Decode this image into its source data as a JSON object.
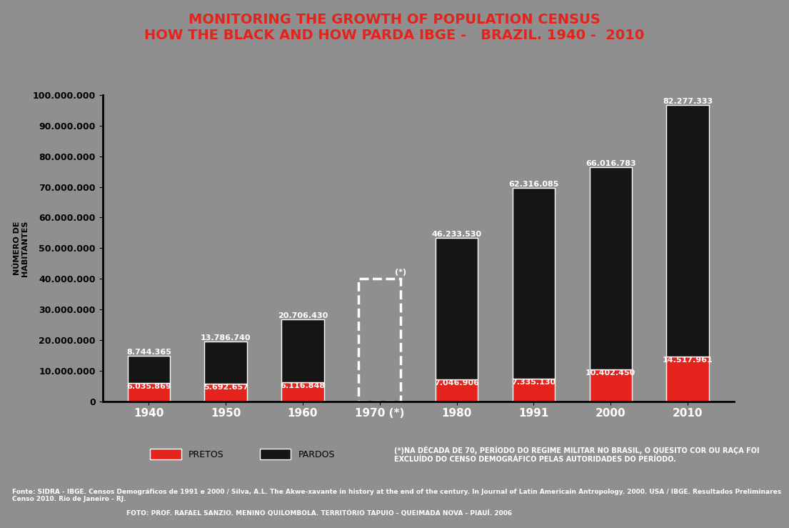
{
  "chart_data": {
    "type": "bar",
    "stacked": true,
    "data_labels": true,
    "title": "MONITORING THE GROWTH OF POPULATION CENSUS\nHOW THE BLACK AND HOW PARDA IBGE -   BRAZIL. 1940 -  2010",
    "y_label": "NÚMERO DE\nHABITANTES",
    "categories": [
      "1940",
      "1950",
      "1960",
      "1970 (*)",
      "1980",
      "1991",
      "2000",
      "2010"
    ],
    "series": [
      {
        "name": "PRETOS",
        "color": "#e3231c",
        "values": [
          6035869,
          5692657,
          6116848,
          null,
          7046906,
          7335130,
          10402450,
          14517961
        ],
        "value_labels": [
          "6.035.869",
          "5.692.657",
          "6.116.848",
          null,
          "7.046.906",
          "7.335.130",
          "10.402.450",
          "14.517.961"
        ]
      },
      {
        "name": "PARDOS",
        "color": "#151515",
        "values": [
          8744365,
          13786740,
          20706430,
          null,
          46233530,
          62316085,
          66016783,
          82277333
        ],
        "value_labels": [
          "8.744.365",
          "13.786.740",
          "20.706.430",
          null,
          "46.233.530",
          "62.316.085",
          "66.016.783",
          "82.277.333"
        ]
      }
    ],
    "missing_marker": "(*)",
    "ylim": [
      0,
      100000000
    ],
    "yticks": [
      0,
      {
        "value": 10000000,
        "label": "10.000.000"
      },
      {
        "value": 20000000,
        "label": "20.000.000"
      },
      {
        "value": 30000000,
        "label": "30.000.000"
      },
      {
        "value": 40000000,
        "label": "40.000.000"
      },
      {
        "value": 50000000,
        "label": "50.000.000"
      },
      {
        "value": 60000000,
        "label": "60.000.000"
      },
      {
        "value": 70000000,
        "label": "70.000.000"
      },
      {
        "value": 80000000,
        "label": "80.000.000"
      },
      {
        "value": 90000000,
        "label": "90.000.000"
      },
      {
        "value": 100000000,
        "label": "100.000.000"
      }
    ],
    "grid": false,
    "legend": "lower left",
    "note": "(*)NA DÉCADA DE 70, PERÍODO DO REGIME MILITAR NO BRASIL, O QUESITO COR OU RAÇA FOI EXCLUÍDO DO CENSO DEMOGRÁFICO PELAS AUTORIDADES DO PERÍODO.",
    "source": "Fonte: SIDRA - IBGE. Censos Demográficos de 1991 e 2000 / Silva, A.L. The Akwe-xavante in history at the end of the century. In Journal of Latin Americain Antropology. 2000. USA / IBGE. Resultados Preliminares Censo 2010. Rio de Janeiro - RJ.",
    "credit": "FOTO: PROF. RAFAEL SANZIO. MENINO QUILOMBOLA. TERRITÓRIO TAPUIO - QUEIMADA NOVA - PIAUÍ. 2006"
  }
}
